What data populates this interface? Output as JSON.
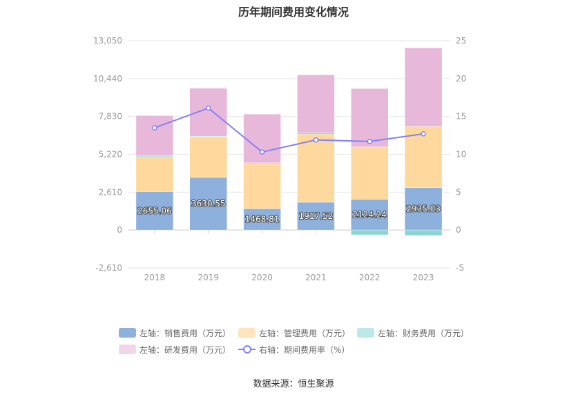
{
  "chart_data": {
    "type": "bar",
    "title": "历年期间费用变化情况",
    "categories": [
      "2018",
      "2019",
      "2020",
      "2021",
      "2022",
      "2023"
    ],
    "left_axis": {
      "min": -2610,
      "max": 13050,
      "ticks": [
        -2610,
        0,
        2610,
        5220,
        7830,
        10440,
        13050
      ],
      "tick_labels": [
        "-2,610",
        "0",
        "2,610",
        "5,220",
        "7,830",
        "10,440",
        "13,050"
      ]
    },
    "right_axis": {
      "min": -5,
      "max": 25,
      "ticks": [
        -5,
        0,
        5,
        10,
        15,
        20,
        25
      ],
      "tick_labels": [
        "-5",
        "0",
        "5",
        "10",
        "15",
        "20",
        "25"
      ]
    },
    "series": [
      {
        "name": "左轴：销售费用（万元）",
        "color": "#8eb0dc",
        "stack": true,
        "values": [
          2655.06,
          3630.55,
          1468.81,
          1917.52,
          2124.24,
          2935.03
        ],
        "labels": [
          "2655.06",
          "3630.55",
          "1468.81",
          "1917.52",
          "2124.24",
          "2935.03"
        ]
      },
      {
        "name": "左轴：管理费用（万元）",
        "color": "#fed89c",
        "stack": true,
        "values": [
          2400,
          2800,
          3100,
          4700,
          3600,
          4200
        ]
      },
      {
        "name": "左轴：财务费用（万元）",
        "color": "#8ad4d4",
        "stack": true,
        "values": [
          60,
          40,
          60,
          100,
          -330,
          -380
        ]
      },
      {
        "name": "左轴：研发费用（万元）",
        "color": "#e8b8da",
        "stack": true,
        "values": [
          2780,
          3300,
          3370,
          3980,
          4030,
          5430
        ]
      },
      {
        "name": "右轴：期间费用率（%）",
        "color": "#8181f7",
        "type": "line",
        "axis": "right",
        "values": [
          13.5,
          16.1,
          10.3,
          11.9,
          11.7,
          12.7
        ]
      }
    ],
    "legend_position": "bottom",
    "grid": true
  },
  "source": "数据来源：恒生聚源"
}
